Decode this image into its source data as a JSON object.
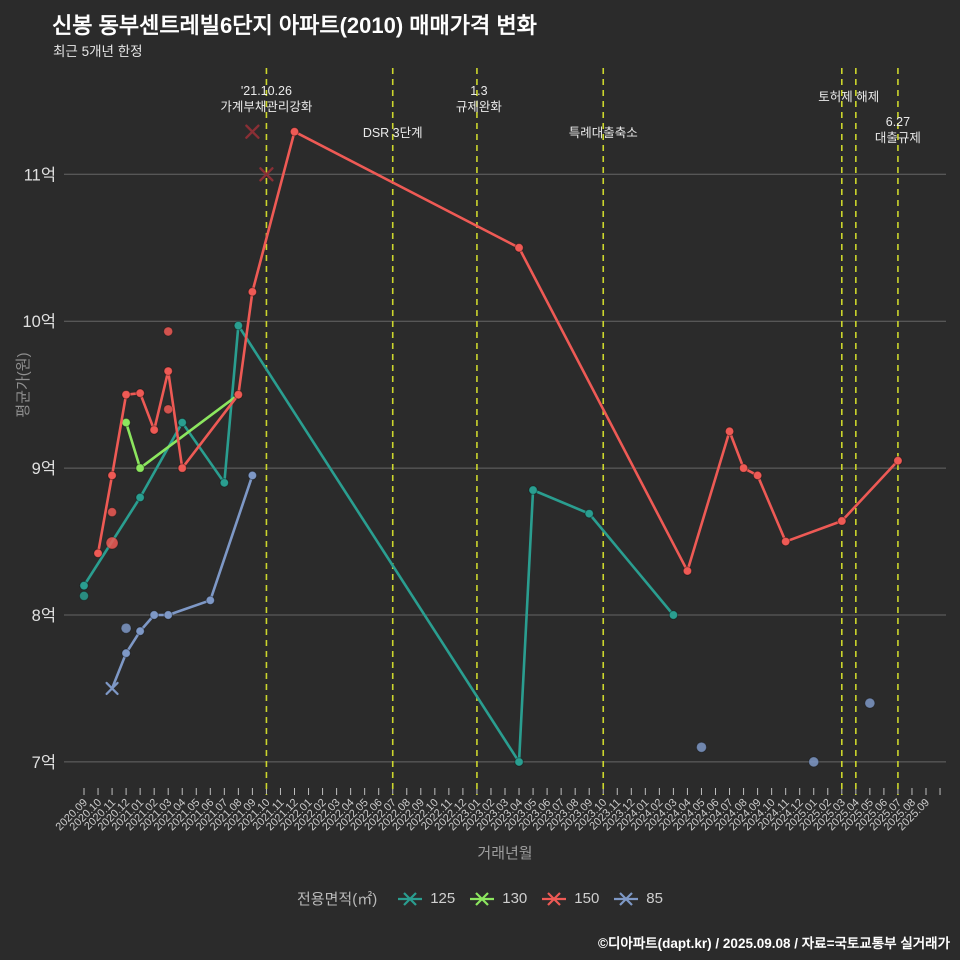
{
  "title": "신봉 동부센트레빌6단지 아파트(2010) 매매가격 변화",
  "subtitle": "최근 5개년 한정",
  "footer": "©디아파트(dapt.kr) / 2025.09.08 / 자료=국토교통부 실거래가",
  "legend": {
    "title": "전용면적(㎡)",
    "items": [
      {
        "label": "125",
        "color": "#2a9e90"
      },
      {
        "label": "130",
        "color": "#8ce65f"
      },
      {
        "label": "150",
        "color": "#ee5a55"
      },
      {
        "label": "85",
        "color": "#7e98c6"
      }
    ]
  },
  "chart_data": {
    "type": "line",
    "title": "신봉 동부센트레빌6단지 아파트(2010) 매매가격 변화",
    "subtitle": "최근 5개년 한정",
    "xlabel": "거래년월",
    "ylabel": "평균가(원)",
    "y_ticks": [
      {
        "value": 7,
        "label": "7억"
      },
      {
        "value": 8,
        "label": "8억"
      },
      {
        "value": 9,
        "label": "9억"
      },
      {
        "value": 10,
        "label": "10억"
      },
      {
        "value": 11,
        "label": "11억"
      }
    ],
    "ylim_eok": [
      6.8,
      11.7
    ],
    "grid": true,
    "legend_position": "bottom",
    "x_categories": [
      "2020.09",
      "2020.10",
      "2020.11",
      "2020.12",
      "2021.01",
      "2021.02",
      "2021.03",
      "2021.04",
      "2021.05",
      "2021.06",
      "2021.07",
      "2021.08",
      "2021.09",
      "2021.10",
      "2021.11",
      "2021.12",
      "2022.01",
      "2022.02",
      "2022.03",
      "2022.04",
      "2022.05",
      "2022.06",
      "2022.07",
      "2022.08",
      "2022.09",
      "2022.10",
      "2022.11",
      "2022.12",
      "2023.01",
      "2023.02",
      "2023.03",
      "2023.04",
      "2023.05",
      "2023.06",
      "2023.07",
      "2023.08",
      "2023.09",
      "2023.10",
      "2023.11",
      "2023.12",
      "2024.01",
      "2024.02",
      "2024.03",
      "2024.04",
      "2024.05",
      "2024.06",
      "2024.07",
      "2024.08",
      "2024.09",
      "2024.10",
      "2024.11",
      "2024.12",
      "2025.01",
      "2025.02",
      "2025.03",
      "2025.04",
      "2025.05",
      "2025.06",
      "2025.07",
      "2025.08",
      "2025.09"
    ],
    "series": [
      {
        "name": "125",
        "color": "#2a9e90",
        "marker": "circle",
        "points": [
          [
            "2020.09",
            8.2
          ],
          [
            "2021.01",
            8.8
          ],
          [
            "2021.04",
            9.31
          ],
          [
            "2021.07",
            8.9
          ],
          [
            "2021.08",
            9.97
          ],
          [
            "2023.04",
            7.0
          ],
          [
            "2023.05",
            8.85
          ],
          [
            "2023.09",
            8.69
          ],
          [
            "2024.03",
            8.0
          ]
        ]
      },
      {
        "name": "130",
        "color": "#8ce65f",
        "marker": "circle",
        "points": [
          [
            "2020.12",
            9.31
          ],
          [
            "2021.01",
            9.0
          ],
          [
            "2021.08",
            9.5
          ]
        ]
      },
      {
        "name": "150",
        "color": "#ee5a55",
        "marker": "circle",
        "points": [
          [
            "2020.10",
            8.42
          ],
          [
            "2020.11",
            8.95
          ],
          [
            "2020.12",
            9.5
          ],
          [
            "2021.01",
            9.51
          ],
          [
            "2021.02",
            9.26
          ],
          [
            "2021.03",
            9.66
          ],
          [
            "2021.04",
            9.0
          ],
          [
            "2021.08",
            9.5
          ],
          [
            "2021.09",
            10.2
          ],
          [
            "2021.12",
            11.29
          ],
          [
            "2023.04",
            10.5
          ],
          [
            "2024.04",
            8.3
          ],
          [
            "2024.07",
            9.25
          ],
          [
            "2024.08",
            9.0
          ],
          [
            "2024.09",
            8.95
          ],
          [
            "2024.11",
            8.5
          ],
          [
            "2025.03",
            8.64
          ],
          [
            "2025.07",
            9.05
          ]
        ]
      },
      {
        "name": "85",
        "color": "#7e98c6",
        "marker": "circle",
        "first_marker": "x",
        "points": [
          [
            "2020.11",
            7.5
          ],
          [
            "2020.12",
            7.74
          ],
          [
            "2021.01",
            7.89
          ],
          [
            "2021.02",
            8.0
          ],
          [
            "2021.03",
            8.0
          ],
          [
            "2021.06",
            8.1
          ],
          [
            "2021.09",
            8.95
          ]
        ]
      }
    ],
    "scatter": [
      {
        "series": "125",
        "color": "#2a9e90",
        "marker": "circle",
        "r": 4.5,
        "points": [
          [
            "2020.09",
            8.13
          ]
        ]
      },
      {
        "series": "150",
        "color": "#ee5a55",
        "marker": "circle",
        "r": 4.5,
        "points": [
          [
            "2020.11",
            8.7
          ],
          [
            "2021.03",
            9.93
          ],
          [
            "2021.03",
            9.4
          ]
        ]
      },
      {
        "series": "150",
        "color": "#ee5a55",
        "marker": "circle",
        "r": 6,
        "points": [
          [
            "2020.11",
            8.49
          ]
        ]
      },
      {
        "series": "150-outlier",
        "color": "#8a2f35",
        "marker": "x",
        "r": 6,
        "points": [
          [
            "2021.09",
            11.29
          ],
          [
            "2021.10",
            11.0
          ]
        ]
      },
      {
        "series": "85",
        "color": "#7e98c6",
        "marker": "circle",
        "r": 5,
        "points": [
          [
            "2020.12",
            7.91
          ],
          [
            "2024.05",
            7.1
          ],
          [
            "2025.01",
            7.0
          ],
          [
            "2025.05",
            7.4
          ]
        ]
      }
    ],
    "events": [
      {
        "month": "2021.10",
        "label_lines": [
          "'21.10.26",
          "가계부채관리강화"
        ],
        "label_y": 95,
        "label_dx": 0
      },
      {
        "month": "2022.07",
        "label_lines": [
          "DSR 3단계"
        ],
        "label_y": 137,
        "label_dx": 0
      },
      {
        "month": "2023.01",
        "label_lines": [
          "1.3",
          "규제완화"
        ],
        "label_y": 95,
        "label_dx": 2
      },
      {
        "month": "2023.10",
        "label_lines": [
          "특례대출축소"
        ],
        "label_y": 137,
        "label_dx": 0
      },
      {
        "month": "2025.03",
        "label_lines": [
          "토허제 해제"
        ],
        "label_y": 101,
        "label_dx": 7
      },
      {
        "month": "2025.04",
        "label_lines": [],
        "label_y": 0,
        "label_dx": 0
      },
      {
        "month": "2025.07",
        "label_lines": [
          "6.27",
          "대출규제"
        ],
        "label_y": 126,
        "label_dx": 0
      }
    ],
    "event_line_color": "#ccd62c",
    "grid_color": "#7a7a7a"
  }
}
